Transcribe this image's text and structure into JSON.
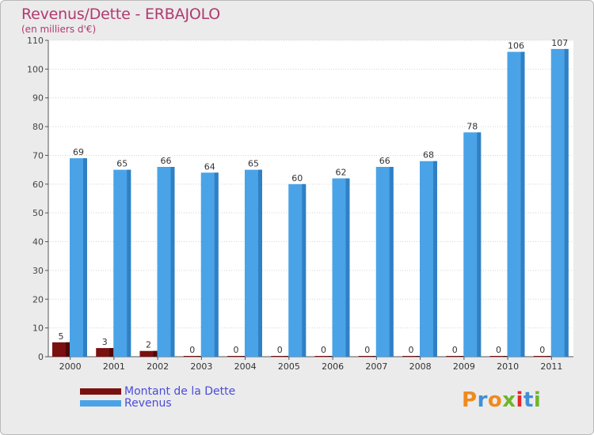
{
  "title": "Revenus/Dette - ERBAJOLO",
  "subtitle": "(en milliers d'€)",
  "logo": {
    "text": "Proxiti",
    "letter_colors": [
      "#f08a1e",
      "#3f8fd6",
      "#f08a1e",
      "#6fb52c",
      "#e8262a",
      "#3f8fd6",
      "#6fb52c"
    ]
  },
  "legend": [
    {
      "label": "Montant de la Dette",
      "color": "#7a1010"
    },
    {
      "label": "Revenus",
      "color": "#4aa3e6"
    }
  ],
  "chart_data": {
    "type": "bar",
    "categories": [
      "2000",
      "2001",
      "2002",
      "2003",
      "2004",
      "2005",
      "2006",
      "2007",
      "2008",
      "2009",
      "2010",
      "2011"
    ],
    "series": [
      {
        "name": "Montant de la Dette",
        "color": "#7a1010",
        "values": [
          5,
          3,
          2,
          0,
          0,
          0,
          0,
          0,
          0,
          0,
          0,
          0
        ]
      },
      {
        "name": "Revenus",
        "color": "#4aa3e6",
        "values": [
          69,
          65,
          66,
          64,
          65,
          60,
          62,
          66,
          68,
          78,
          106,
          107
        ]
      }
    ],
    "ylim": [
      0,
      110
    ],
    "yticks": [
      0,
      10,
      20,
      30,
      40,
      50,
      60,
      70,
      80,
      90,
      100,
      110
    ],
    "grid": true
  }
}
